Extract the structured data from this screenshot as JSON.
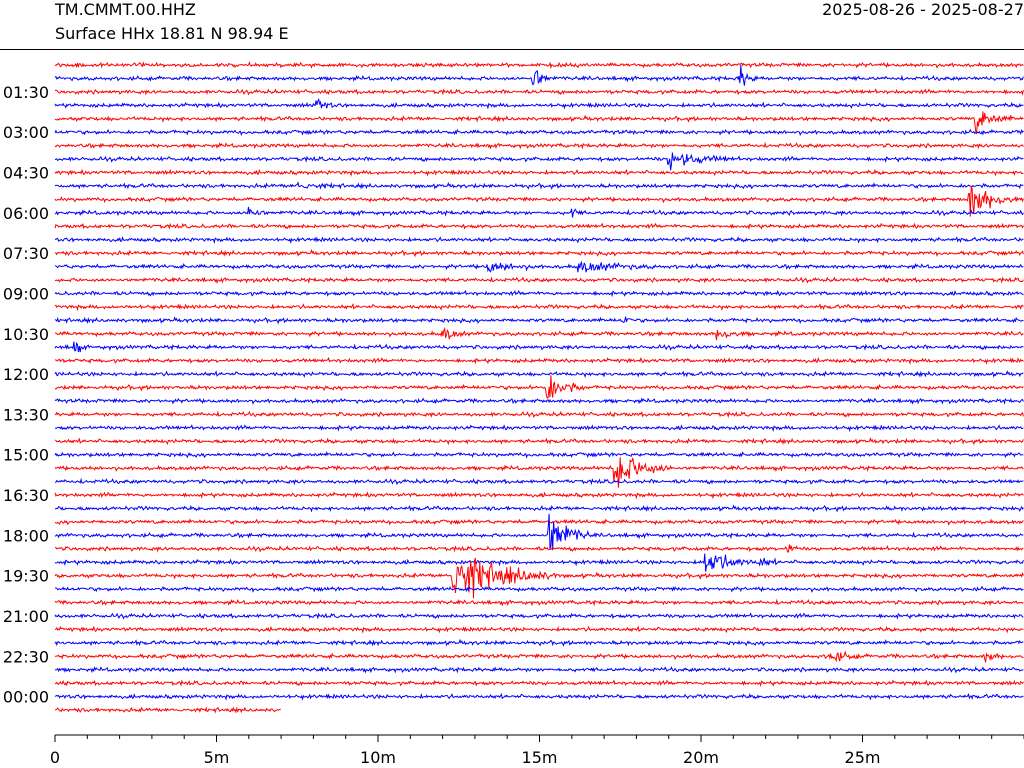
{
  "header": {
    "station": "TM.CMMT.00.HHZ",
    "date_range": "2025-08-26 - 2025-08-27",
    "location": "Surface HHx  18.81 N 98.94 E"
  },
  "chart_data": {
    "type": "line",
    "title": "TM.CMMT.00.HHZ",
    "subtitle": "Surface HHx  18.81 N 98.94 E",
    "xlabel": "",
    "ylabel": "",
    "x_ticks": [
      "0",
      "5m",
      "10m",
      "15m",
      "20m",
      "25m"
    ],
    "x_tick_minutes": [
      0,
      5,
      10,
      15,
      20,
      25
    ],
    "xlim_minutes": [
      0,
      30
    ],
    "y_ticks": [
      "01:30",
      "03:00",
      "04:30",
      "06:00",
      "07:30",
      "09:00",
      "10:30",
      "12:00",
      "13:30",
      "15:00",
      "16:30",
      "18:00",
      "19:30",
      "21:00",
      "22:30",
      "00:00"
    ],
    "trace_interval_minutes": 30,
    "trace_count": 49,
    "last_trace_end_minutes": 7,
    "series_colors": [
      "#ff0000",
      "#0000ff"
    ],
    "grid": false,
    "events": [
      {
        "trace": 1,
        "minute": 14.8,
        "amp": 2.2,
        "dur": 0.6
      },
      {
        "trace": 1,
        "minute": 21.2,
        "amp": 2.0,
        "dur": 0.5
      },
      {
        "trace": 3,
        "minute": 8.1,
        "amp": 0.9,
        "dur": 0.6
      },
      {
        "trace": 4,
        "minute": 28.5,
        "amp": 1.6,
        "dur": 1.2
      },
      {
        "trace": 7,
        "minute": 19.0,
        "amp": 1.2,
        "dur": 2.0
      },
      {
        "trace": 9,
        "minute": 7.5,
        "amp": 0.5,
        "dur": 1.2
      },
      {
        "trace": 10,
        "minute": 28.3,
        "amp": 2.6,
        "dur": 1.5
      },
      {
        "trace": 11,
        "minute": 6.0,
        "amp": 1.2,
        "dur": 0.6
      },
      {
        "trace": 11,
        "minute": 16.0,
        "amp": 0.9,
        "dur": 0.3
      },
      {
        "trace": 15,
        "minute": 13.4,
        "amp": 0.8,
        "dur": 1.5
      },
      {
        "trace": 15,
        "minute": 16.2,
        "amp": 0.7,
        "dur": 2.5
      },
      {
        "trace": 19,
        "minute": 17.6,
        "amp": 0.8,
        "dur": 0.3
      },
      {
        "trace": 20,
        "minute": 12.0,
        "amp": 1.0,
        "dur": 0.8
      },
      {
        "trace": 20,
        "minute": 20.5,
        "amp": 0.8,
        "dur": 1.0
      },
      {
        "trace": 21,
        "minute": 0.6,
        "amp": 1.5,
        "dur": 0.3
      },
      {
        "trace": 24,
        "minute": 15.2,
        "amp": 2.5,
        "dur": 1.2
      },
      {
        "trace": 30,
        "minute": 17.3,
        "amp": 3.2,
        "dur": 1.8
      },
      {
        "trace": 35,
        "minute": 15.3,
        "amp": 3.8,
        "dur": 1.2
      },
      {
        "trace": 36,
        "minute": 22.7,
        "amp": 1.2,
        "dur": 0.3
      },
      {
        "trace": 37,
        "minute": 20.1,
        "amp": 2.0,
        "dur": 1.6
      },
      {
        "trace": 37,
        "minute": 21.8,
        "amp": 0.8,
        "dur": 0.6
      },
      {
        "trace": 38,
        "minute": 12.3,
        "amp": 3.6,
        "dur": 3.3
      },
      {
        "trace": 44,
        "minute": 24.0,
        "amp": 0.8,
        "dur": 1.0
      },
      {
        "trace": 44,
        "minute": 28.8,
        "amp": 0.8,
        "dur": 0.6
      }
    ]
  }
}
